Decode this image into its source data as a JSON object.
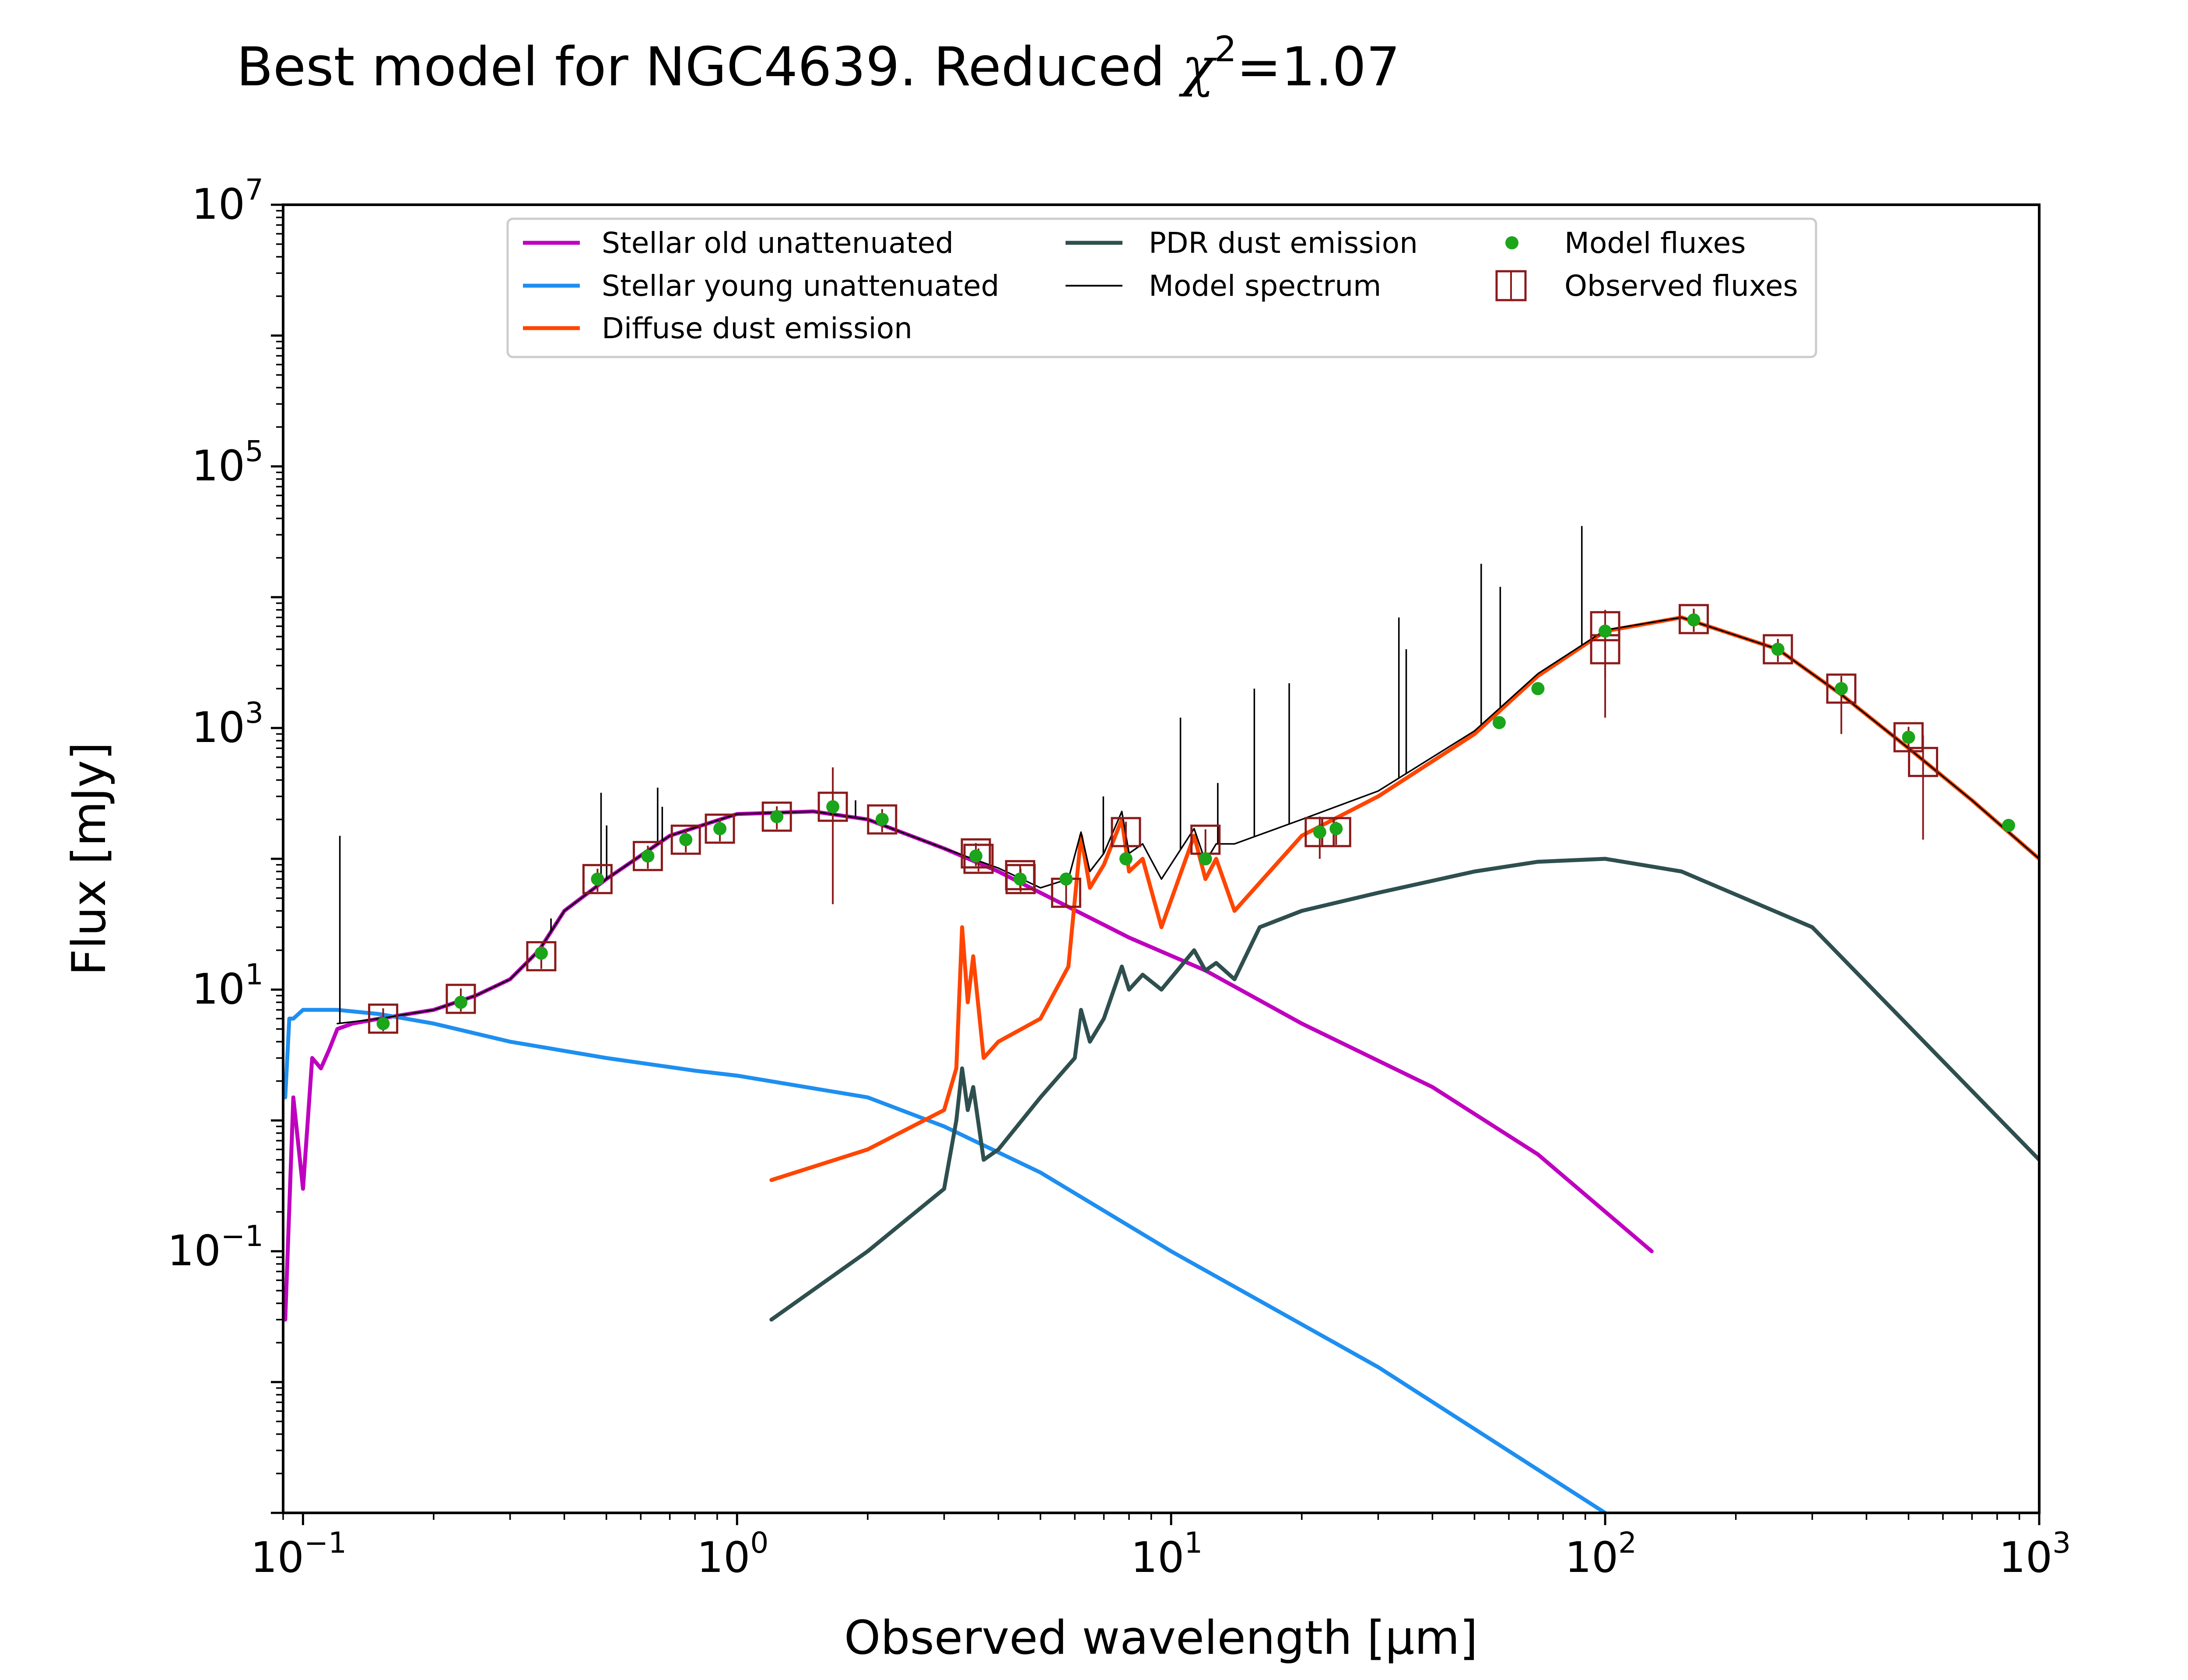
{
  "chart_data": {
    "type": "line",
    "title_main": "Best model for NGC4639. Reduced ",
    "title_chi": "χ",
    "title_chi_exp": "2",
    "title_tail": "=1.07",
    "xlabel": "Observed wavelength [μm]",
    "ylabel": "Flux [mJy]",
    "xscale": "log",
    "yscale": "log",
    "xlim": [
      0.09,
      1000
    ],
    "ylim": [
      0.001,
      10000000
    ],
    "grid": false,
    "legend_position": "top-center",
    "x_ticks": [
      {
        "base": "10",
        "exp": "−1",
        "value": 0.1
      },
      {
        "base": "10",
        "exp": "0",
        "value": 1
      },
      {
        "base": "10",
        "exp": "1",
        "value": 10
      },
      {
        "base": "10",
        "exp": "2",
        "value": 100
      },
      {
        "base": "10",
        "exp": "3",
        "value": 1000
      }
    ],
    "y_ticks": [
      {
        "base": "10",
        "exp": "−1",
        "value": 0.1
      },
      {
        "base": "10",
        "exp": "1",
        "value": 10
      },
      {
        "base": "10",
        "exp": "3",
        "value": 1000
      },
      {
        "base": "10",
        "exp": "5",
        "value": 100000
      },
      {
        "base": "10",
        "exp": "7",
        "value": 10000000
      }
    ],
    "series": [
      {
        "name": "Stellar old unattenuated",
        "color": "#bf00bf",
        "x": [
          0.091,
          0.095,
          0.1,
          0.105,
          0.11,
          0.115,
          0.12,
          0.13,
          0.15,
          0.2,
          0.25,
          0.3,
          0.35,
          0.4,
          0.5,
          0.7,
          1.0,
          1.5,
          2.0,
          3.0,
          4.0,
          5.0,
          8.0,
          12.0,
          20.0,
          40.0,
          70.0,
          128.0
        ],
        "y": [
          0.03,
          1.5,
          0.3,
          3.0,
          2.5,
          3.5,
          5.0,
          5.5,
          6.0,
          7.0,
          9.0,
          12.0,
          20.0,
          40.0,
          70.0,
          150.0,
          220.0,
          230.0,
          200.0,
          120.0,
          80.0,
          55.0,
          25.0,
          14.0,
          5.5,
          1.8,
          0.55,
          0.1
        ]
      },
      {
        "name": "Stellar young unattenuated",
        "color": "#1e8ff0",
        "x": [
          0.091,
          0.093,
          0.095,
          0.1,
          0.12,
          0.15,
          0.2,
          0.3,
          0.5,
          0.8,
          1.0,
          2.0,
          3.0,
          5.0,
          10.0,
          30.0,
          100.0
        ],
        "y": [
          1.5,
          6.0,
          6.0,
          7.0,
          7.0,
          6.5,
          5.5,
          4.0,
          3.0,
          2.4,
          2.2,
          1.5,
          0.9,
          0.4,
          0.1,
          0.013,
          0.001
        ]
      },
      {
        "name": "Diffuse dust emission",
        "color": "#ff4500",
        "x": [
          1.2,
          2.0,
          3.0,
          3.2,
          3.3,
          3.4,
          3.5,
          3.7,
          4.0,
          5.0,
          5.8,
          6.2,
          6.5,
          7.0,
          7.7,
          8.0,
          8.6,
          9.5,
          11.3,
          12.0,
          12.7,
          14.0,
          20.0,
          30.0,
          50.0,
          70.0,
          100.0,
          150.0,
          250.0,
          350.0,
          500.0,
          700.0,
          1000.0
        ],
        "y": [
          0.35,
          0.6,
          1.2,
          2.5,
          30.0,
          8.0,
          18.0,
          3.0,
          4.0,
          6.0,
          15.0,
          150.0,
          60.0,
          90.0,
          200.0,
          80.0,
          100.0,
          30.0,
          150.0,
          70.0,
          100.0,
          40.0,
          150.0,
          300.0,
          900.0,
          2500.0,
          5500.0,
          7000.0,
          4000.0,
          1800.0,
          700.0,
          280.0,
          100.0
        ]
      },
      {
        "name": "PDR dust emission",
        "color": "#2f4f4f",
        "x": [
          1.2,
          2.0,
          3.0,
          3.2,
          3.3,
          3.4,
          3.5,
          3.7,
          4.0,
          5.0,
          6.0,
          6.2,
          6.5,
          7.0,
          7.7,
          8.0,
          8.6,
          9.5,
          11.3,
          12.0,
          12.7,
          14.0,
          16.0,
          20.0,
          30.0,
          50.0,
          70.0,
          100.0,
          150.0,
          300.0,
          1000.0
        ],
        "y": [
          0.03,
          0.1,
          0.3,
          1.0,
          2.5,
          1.2,
          1.8,
          0.5,
          0.6,
          1.5,
          3.0,
          7.0,
          4.0,
          6.0,
          15.0,
          10.0,
          13.0,
          10.0,
          20.0,
          14.0,
          16.0,
          12.0,
          30.0,
          40.0,
          55.0,
          80.0,
          95.0,
          100.0,
          80.0,
          30.0,
          0.5
        ]
      },
      {
        "name": "Model spectrum",
        "color": "#000000",
        "x": [
          0.12,
          0.15,
          0.2,
          0.25,
          0.3,
          0.35,
          0.4,
          0.5,
          0.7,
          1.0,
          1.5,
          2.0,
          3.0,
          4.0,
          5.0,
          5.8,
          6.2,
          6.5,
          7.0,
          7.7,
          8.0,
          8.6,
          9.5,
          11.3,
          12.0,
          12.7,
          14.0,
          20.0,
          30.0,
          50.0,
          70.0,
          100.0,
          150.0,
          250.0,
          350.0,
          500.0,
          700.0,
          1000.0
        ],
        "y": [
          5.5,
          6.0,
          7.0,
          9.0,
          12.0,
          20.0,
          40.0,
          70.0,
          150.0,
          220.0,
          230.0,
          200.0,
          120.0,
          85.0,
          60.0,
          70.0,
          160.0,
          80.0,
          110.0,
          230.0,
          110.0,
          130.0,
          70.0,
          170.0,
          95.0,
          130.0,
          130.0,
          200.0,
          330.0,
          950.0,
          2600.0,
          5600.0,
          7000.0,
          4000.0,
          1800.0,
          700.0,
          280.0,
          100.0
        ]
      }
    ],
    "model_spectrum_emission_lines": [
      {
        "x": 0.1216,
        "y": 150.0
      },
      {
        "x": 0.3727,
        "y": 35.0
      },
      {
        "x": 0.4861,
        "y": 320.0
      },
      {
        "x": 0.5007,
        "y": 180.0
      },
      {
        "x": 0.6563,
        "y": 350.0
      },
      {
        "x": 0.6725,
        "y": 250.0
      },
      {
        "x": 1.875,
        "y": 280.0
      },
      {
        "x": 6.98,
        "y": 300.0
      },
      {
        "x": 10.51,
        "y": 1200.0
      },
      {
        "x": 12.81,
        "y": 380.0
      },
      {
        "x": 15.55,
        "y": 2000.0
      },
      {
        "x": 18.71,
        "y": 2200.0
      },
      {
        "x": 33.48,
        "y": 7000.0
      },
      {
        "x": 34.81,
        "y": 4000.0
      },
      {
        "x": 51.81,
        "y": 18000.0
      },
      {
        "x": 57.32,
        "y": 12000.0
      },
      {
        "x": 88.36,
        "y": 35000.0
      }
    ],
    "model_fluxes": {
      "name": "Model fluxes",
      "color": "#1aa51a",
      "x": [
        0.153,
        0.231,
        0.354,
        0.477,
        0.623,
        0.762,
        0.913,
        1.235,
        1.662,
        2.159,
        3.55,
        4.49,
        5.73,
        7.87,
        12.0,
        22.0,
        24.0,
        57.0,
        70.0,
        100.0,
        160.0,
        250.0,
        350.0,
        500.0,
        850.0
      ],
      "y": [
        5.5,
        8.0,
        19.0,
        70.0,
        105.0,
        140.0,
        170.0,
        210.0,
        250.0,
        200.0,
        105.0,
        70.0,
        70.0,
        100.0,
        100.0,
        160.0,
        170.0,
        1100.0,
        2000.0,
        5500.0,
        6700.0,
        4000.0,
        2000.0,
        850.0,
        180.0
      ]
    },
    "observed_fluxes": {
      "name": "Observed fluxes",
      "color": "#8b1a1a",
      "x": [
        0.153,
        0.231,
        0.354,
        0.477,
        0.623,
        0.762,
        0.913,
        1.235,
        1.662,
        2.159,
        3.55,
        3.6,
        4.49,
        4.5,
        5.73,
        7.87,
        12.0,
        22.0,
        24.0,
        100.0,
        100.0,
        160.0,
        250.0,
        350.0,
        500.0,
        540.0
      ],
      "y": [
        6.0,
        8.5,
        18.0,
        70.0,
        105.0,
        140.0,
        170.0,
        210.0,
        250.0,
        200.0,
        110.0,
        100.0,
        75.0,
        70.0,
        55.0,
        160.0,
        140.0,
        160.0,
        160.0,
        4000.0,
        6000.0,
        6800.0,
        4000.0,
        2000.0,
        850.0,
        550.0
      ],
      "err_low": [
        4.8,
        6.8,
        14.4,
        56.0,
        84.0,
        112.0,
        136.0,
        168.0,
        45.0,
        160.0,
        88.0,
        80.0,
        60.0,
        56.0,
        44.0,
        128.0,
        112.0,
        100.0,
        128.0,
        1200.0,
        2400.0,
        5440.0,
        3200.0,
        900.0,
        680.0,
        140.0
      ],
      "err_high": [
        7.2,
        10.2,
        21.6,
        84.0,
        126.0,
        168.0,
        204.0,
        252.0,
        500.0,
        240.0,
        132.0,
        120.0,
        90.0,
        84.0,
        66.0,
        192.0,
        168.0,
        210.0,
        192.0,
        6000.0,
        8000.0,
        8160.0,
        4800.0,
        2500.0,
        1020.0,
        880.0
      ]
    }
  }
}
